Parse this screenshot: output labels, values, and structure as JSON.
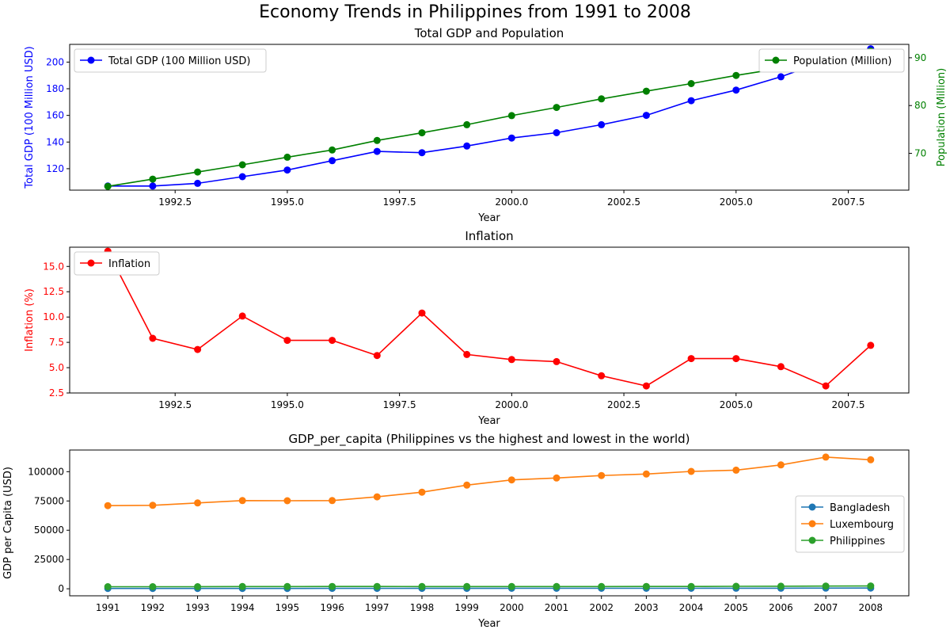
{
  "figure_title": "Economy Trends in Philippines from 1991 to 2008",
  "colors": {
    "gdp": "#0000ff",
    "population": "#008000",
    "inflation": "#ff0000",
    "bangladesh": "#1f77b4",
    "luxembourg": "#ff7f0e",
    "philippines": "#2ca02c"
  },
  "chart_data": [
    {
      "type": "line",
      "title": "Total GDP and Population",
      "xlabel": "Year",
      "ylabel": "Total GDP (100 Million USD)",
      "y2label": "Population (Million)",
      "xlim": [
        1990.15,
        2008.85
      ],
      "ylim": [
        103.9,
        213.3
      ],
      "y2lim": [
        62.3,
        92.8
      ],
      "xticks": [
        1992.5,
        1995.0,
        1997.5,
        2000.0,
        2002.5,
        2005.0,
        2007.5
      ],
      "xtick_labels": [
        "1992.5",
        "1995.0",
        "1997.5",
        "2000.0",
        "2002.5",
        "2005.0",
        "2007.5"
      ],
      "yticks": [
        120,
        140,
        160,
        180,
        200
      ],
      "ytick_labels": [
        "120",
        "140",
        "160",
        "180",
        "200"
      ],
      "y2ticks": [
        70,
        80,
        90
      ],
      "y2tick_labels": [
        "70",
        "80",
        "90"
      ],
      "x": [
        1991,
        1992,
        1993,
        1994,
        1995,
        1996,
        1997,
        1998,
        1999,
        2000,
        2001,
        2002,
        2003,
        2004,
        2005,
        2006,
        2007,
        2008
      ],
      "series": [
        {
          "name": "Total GDP (100 Million USD)",
          "axis": "left",
          "values": [
            107,
            107,
            109,
            114,
            119,
            126,
            133,
            132,
            137,
            143,
            147,
            153,
            160,
            171,
            179,
            189,
            201,
            210
          ]
        },
        {
          "name": "Population (Million)",
          "axis": "right",
          "values": [
            63.1,
            64.6,
            66.1,
            67.6,
            69.2,
            70.7,
            72.7,
            74.3,
            76.0,
            77.9,
            79.6,
            81.4,
            83.0,
            84.6,
            86.3,
            87.8,
            89.4,
            91.4
          ]
        }
      ],
      "legend_left": "upper-left",
      "legend_right": "upper-right",
      "grid": false
    },
    {
      "type": "line",
      "title": "Inflation",
      "xlabel": "Year",
      "ylabel": "Inflation (%)",
      "xlim": [
        1990.15,
        2008.85
      ],
      "ylim": [
        2.5,
        16.9
      ],
      "xticks": [
        1992.5,
        1995.0,
        1997.5,
        2000.0,
        2002.5,
        2005.0,
        2007.5
      ],
      "xtick_labels": [
        "1992.5",
        "1995.0",
        "1997.5",
        "2000.0",
        "2002.5",
        "2005.0",
        "2007.5"
      ],
      "yticks": [
        2.5,
        5.0,
        7.5,
        10.0,
        12.5,
        15.0
      ],
      "ytick_labels": [
        "2.5",
        "5.0",
        "7.5",
        "10.0",
        "12.5",
        "15.0"
      ],
      "x": [
        1991,
        1992,
        1993,
        1994,
        1995,
        1996,
        1997,
        1998,
        1999,
        2000,
        2001,
        2002,
        2003,
        2004,
        2005,
        2006,
        2007,
        2008
      ],
      "series": [
        {
          "name": "Inflation",
          "values": [
            16.5,
            7.9,
            6.8,
            10.1,
            7.7,
            7.7,
            6.2,
            10.4,
            6.3,
            5.8,
            5.6,
            4.2,
            3.2,
            5.9,
            5.9,
            5.1,
            3.2,
            7.2
          ]
        }
      ],
      "legend": "upper-left",
      "grid": false
    },
    {
      "type": "line",
      "title": "GDP_per_capita (Philippines vs the highest and lowest in the world)",
      "xlabel": "Year",
      "ylabel": "GDP per Capita (USD)",
      "xlim": [
        1990.15,
        2008.85
      ],
      "ylim": [
        -6000,
        118500
      ],
      "xticks": [
        1991,
        1992,
        1993,
        1994,
        1995,
        1996,
        1997,
        1998,
        1999,
        2000,
        2001,
        2002,
        2003,
        2004,
        2005,
        2006,
        2007,
        2008
      ],
      "xtick_labels": [
        "1991",
        "1992",
        "1993",
        "1994",
        "1995",
        "1996",
        "1997",
        "1998",
        "1999",
        "2000",
        "2001",
        "2002",
        "2003",
        "2004",
        "2005",
        "2006",
        "2007",
        "2008"
      ],
      "yticks": [
        0,
        25000,
        50000,
        75000,
        100000
      ],
      "ytick_labels": [
        "0",
        "25000",
        "50000",
        "75000",
        "100000"
      ],
      "x": [
        1991,
        1992,
        1993,
        1994,
        1995,
        1996,
        1997,
        1998,
        1999,
        2000,
        2001,
        2002,
        2003,
        2004,
        2005,
        2006,
        2007,
        2008
      ],
      "series": [
        {
          "name": "Bangladesh",
          "values": [
            290,
            290,
            290,
            300,
            320,
            330,
            350,
            360,
            360,
            410,
            410,
            400,
            430,
            460,
            480,
            510,
            560,
            620
          ]
        },
        {
          "name": "Luxembourg",
          "values": [
            71000,
            71300,
            73300,
            75300,
            75200,
            75300,
            78500,
            82500,
            88500,
            93000,
            94600,
            96700,
            98000,
            100200,
            101300,
            105800,
            112500,
            110200
          ]
        },
        {
          "name": "Philippines",
          "values": [
            1800,
            1800,
            1800,
            1900,
            1900,
            2000,
            2000,
            1900,
            1900,
            1900,
            1900,
            1900,
            2000,
            2000,
            2100,
            2200,
            2300,
            2400
          ]
        }
      ],
      "legend": "center-right",
      "grid": false
    }
  ]
}
